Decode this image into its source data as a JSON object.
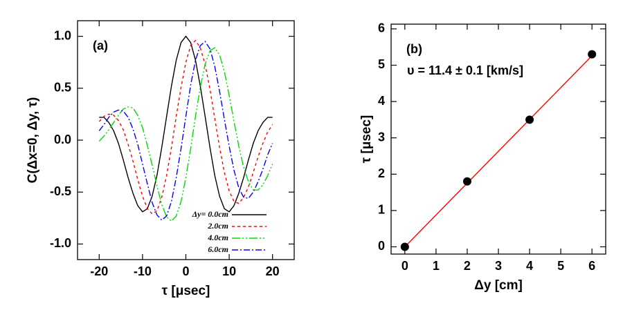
{
  "chart_data": [
    {
      "type": "line",
      "title": "(a)",
      "x_label": "τ [μsec]",
      "y_label": "C(Δx=0, Δy, τ)",
      "x": [
        -20,
        -18.89,
        -17.78,
        -16.67,
        -15.56,
        -14.44,
        -13.33,
        -12.22,
        -11.11,
        -10,
        -8.89,
        -7.78,
        -6.67,
        -5.56,
        -4.44,
        -3.33,
        -2.22,
        -1.11,
        0,
        1.11,
        2.22,
        3.33,
        4.44,
        5.56,
        6.67,
        7.78,
        8.89,
        10,
        11.11,
        12.22,
        13.33,
        14.44,
        15.56,
        16.67,
        17.78,
        18.89,
        20
      ],
      "series": [
        {
          "name": "Δy= 0.0cm",
          "color": "#000000",
          "values": [
            0.22,
            0.22,
            0.17,
            0.09,
            -0.03,
            -0.19,
            -0.36,
            -0.51,
            -0.63,
            -0.69,
            -0.66,
            -0.54,
            -0.34,
            -0.07,
            0.23,
            0.52,
            0.77,
            0.94,
            1.0,
            0.94,
            0.77,
            0.52,
            0.23,
            -0.07,
            -0.34,
            -0.54,
            -0.66,
            -0.69,
            -0.63,
            -0.51,
            -0.36,
            -0.19,
            -0.03,
            0.09,
            0.17,
            0.22,
            0.22
          ]
        },
        {
          "name": "2.0cm",
          "color": "#ff0000",
          "values": [
            0.18,
            0.23,
            0.25,
            0.24,
            0.19,
            0.1,
            -0.04,
            -0.2,
            -0.38,
            -0.54,
            -0.66,
            -0.71,
            -0.68,
            -0.55,
            -0.34,
            -0.07,
            0.23,
            0.51,
            0.75,
            0.91,
            0.96,
            0.89,
            0.73,
            0.49,
            0.21,
            -0.07,
            -0.31,
            -0.49,
            -0.59,
            -0.61,
            -0.55,
            -0.45,
            -0.31,
            -0.16,
            -0.03,
            0.08,
            0.15
          ]
        },
        {
          "name": "4.0cm",
          "color": "#00dd00",
          "values": [
            -0.01,
            0.04,
            0.1,
            0.17,
            0.24,
            0.3,
            0.32,
            0.31,
            0.24,
            0.12,
            -0.05,
            -0.24,
            -0.44,
            -0.62,
            -0.74,
            -0.78,
            -0.73,
            -0.59,
            -0.36,
            -0.08,
            0.23,
            0.51,
            0.73,
            0.86,
            0.89,
            0.82,
            0.66,
            0.43,
            0.18,
            -0.06,
            -0.26,
            -0.4,
            -0.48,
            -0.48,
            -0.43,
            -0.34,
            -0.23
          ]
        },
        {
          "name": "6.0cm",
          "color": "#0000ff",
          "values": [
            0.09,
            0.15,
            0.22,
            0.27,
            0.29,
            0.28,
            0.22,
            0.11,
            -0.04,
            -0.23,
            -0.42,
            -0.6,
            -0.72,
            -0.77,
            -0.73,
            -0.59,
            -0.36,
            -0.08,
            0.23,
            0.53,
            0.77,
            0.91,
            0.95,
            0.88,
            0.71,
            0.47,
            0.2,
            -0.06,
            -0.29,
            -0.46,
            -0.55,
            -0.56,
            -0.5,
            -0.4,
            -0.28,
            -0.14,
            -0.03
          ]
        }
      ],
      "legend": "lower right",
      "xlim": [
        -25,
        25
      ],
      "xticks": [
        -20,
        -10,
        0,
        10,
        20
      ],
      "ylim": [
        -1.15,
        1.15
      ],
      "yticks": [
        {
          "value": -1,
          "label": "-1.0"
        },
        {
          "value": -0.5,
          "label": "-0.5"
        },
        {
          "value": 0,
          "label": "0.0"
        },
        {
          "value": 0.5,
          "label": "0.5"
        },
        {
          "value": 1,
          "label": "1.0"
        }
      ]
    },
    {
      "type": "scatter",
      "title": "(b)",
      "annotation": "υ = 11.4 ± 0.1 [km/s]",
      "x_label": "Δy [cm]",
      "y_label": "τ [μsec]",
      "x": [
        0,
        2,
        4,
        6
      ],
      "values": [
        0,
        1.8,
        3.5,
        5.3
      ],
      "color": "#000000",
      "fit": {
        "x": [
          0,
          6
        ],
        "values": [
          0,
          5.26
        ],
        "color": "#ff0000"
      },
      "xlim": [
        -0.44,
        6.44
      ],
      "xticks": [
        0,
        1,
        2,
        3,
        4,
        5,
        6
      ],
      "ylim": [
        -0.2,
        6.13
      ],
      "yticks": [
        0,
        1,
        2,
        3,
        4,
        5,
        6
      ]
    }
  ]
}
